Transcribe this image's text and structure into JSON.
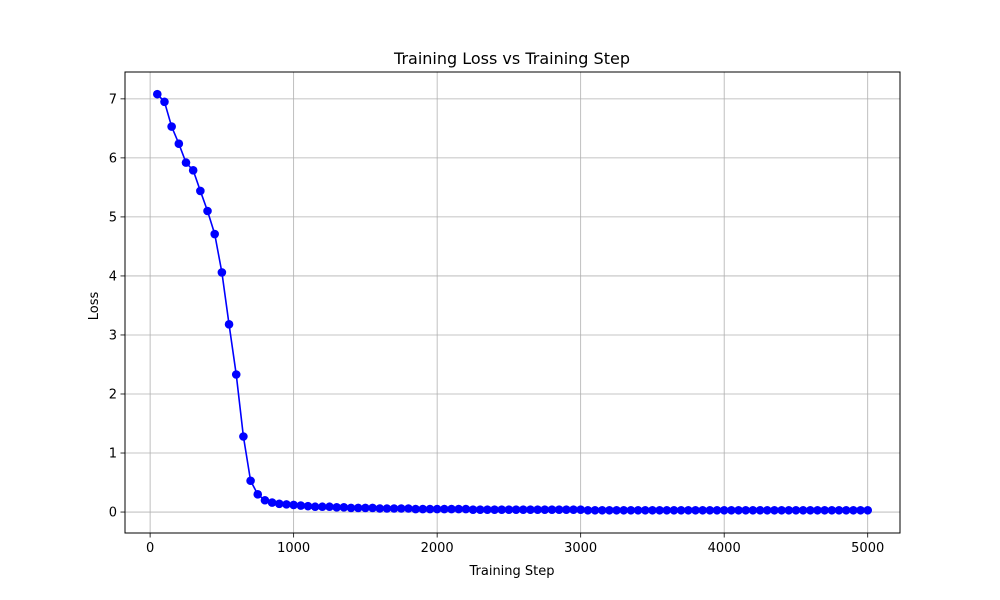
{
  "chart_data": {
    "type": "line",
    "title": "Training Loss vs Training Step",
    "xlabel": "Training Step",
    "ylabel": "Loss",
    "xlim": [
      -175,
      5225
    ],
    "ylim": [
      -0.355,
      7.455
    ],
    "xticks": [
      0,
      1000,
      2000,
      3000,
      4000,
      5000
    ],
    "yticks": [
      0,
      1,
      2,
      3,
      4,
      5,
      6,
      7
    ],
    "grid": true,
    "line_color": "#0000ff",
    "marker": "circle",
    "series": [
      {
        "x": [
          50,
          100,
          150,
          200,
          250,
          300,
          350,
          400,
          450,
          500,
          550,
          600,
          650,
          700,
          750,
          800,
          850,
          900,
          950,
          1000,
          1050,
          1100,
          1150,
          1200,
          1250,
          1300,
          1350,
          1400,
          1450,
          1500,
          1550,
          1600,
          1650,
          1700,
          1750,
          1800,
          1850,
          1900,
          1950,
          2000,
          2050,
          2100,
          2150,
          2200,
          2250,
          2300,
          2350,
          2400,
          2450,
          2500,
          2550,
          2600,
          2650,
          2700,
          2750,
          2800,
          2850,
          2900,
          2950,
          3000,
          3050,
          3100,
          3150,
          3200,
          3250,
          3300,
          3350,
          3400,
          3450,
          3500,
          3550,
          3600,
          3650,
          3700,
          3750,
          3800,
          3850,
          3900,
          3950,
          4000,
          4050,
          4100,
          4150,
          4200,
          4250,
          4300,
          4350,
          4400,
          4450,
          4500,
          4550,
          4600,
          4650,
          4700,
          4750,
          4800,
          4850,
          4900,
          4950,
          5000
        ],
        "y": [
          7.08,
          6.95,
          6.53,
          6.24,
          5.92,
          5.79,
          5.44,
          5.1,
          4.71,
          4.06,
          3.18,
          2.33,
          1.28,
          0.53,
          0.3,
          0.2,
          0.16,
          0.14,
          0.13,
          0.12,
          0.11,
          0.1,
          0.09,
          0.09,
          0.09,
          0.08,
          0.08,
          0.07,
          0.07,
          0.07,
          0.07,
          0.06,
          0.06,
          0.06,
          0.06,
          0.06,
          0.05,
          0.05,
          0.05,
          0.05,
          0.05,
          0.05,
          0.05,
          0.05,
          0.04,
          0.04,
          0.04,
          0.04,
          0.04,
          0.04,
          0.04,
          0.04,
          0.04,
          0.04,
          0.04,
          0.04,
          0.04,
          0.04,
          0.04,
          0.04,
          0.03,
          0.03,
          0.03,
          0.03,
          0.03,
          0.03,
          0.03,
          0.03,
          0.03,
          0.03,
          0.03,
          0.03,
          0.03,
          0.03,
          0.03,
          0.03,
          0.03,
          0.03,
          0.03,
          0.03,
          0.03,
          0.03,
          0.03,
          0.03,
          0.03,
          0.03,
          0.03,
          0.03,
          0.03,
          0.03,
          0.03,
          0.03,
          0.03,
          0.03,
          0.03,
          0.03,
          0.03,
          0.03,
          0.03,
          0.03
        ]
      }
    ]
  }
}
